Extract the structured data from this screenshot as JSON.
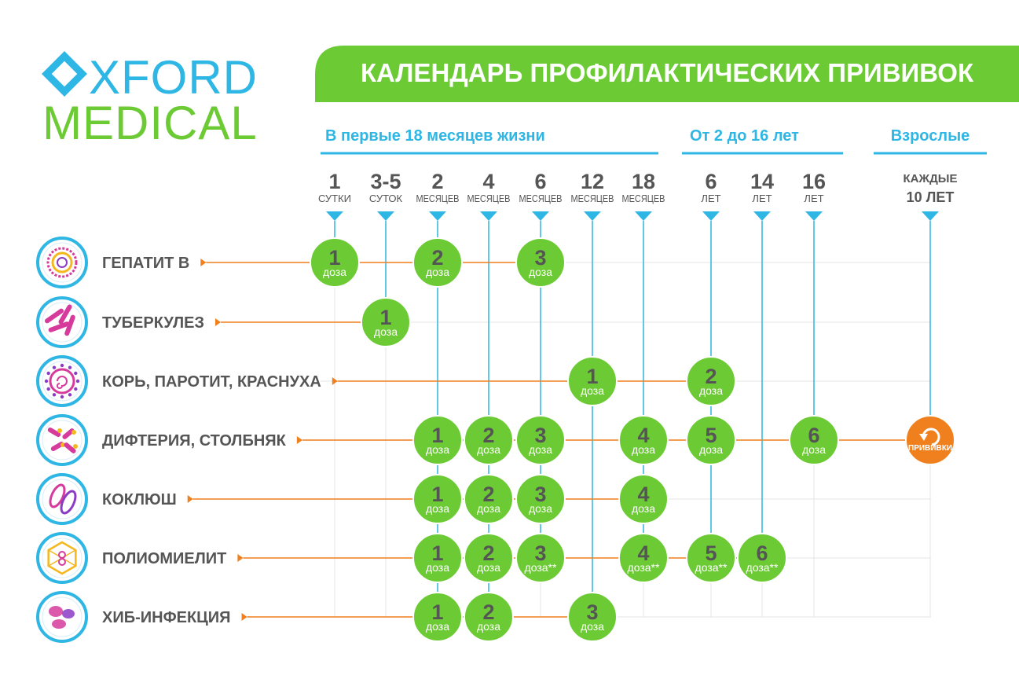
{
  "logo": {
    "line1": "XFORD",
    "line2": "MEDICAL"
  },
  "title": "КАЛЕНДАРЬ ПРОФИЛАКТИЧЕСКИХ ПРИВИВОК",
  "colors": {
    "green": "#6CCB34",
    "green_dark": "#5DB82B",
    "blue": "#2EB6E4",
    "orange": "#F07F1D",
    "text_dark": "#555555",
    "white": "#ffffff"
  },
  "sections": [
    {
      "id": "infants",
      "label": "В первые 18 месяцев жизни"
    },
    {
      "id": "children",
      "label": "От 2 до 16 лет"
    },
    {
      "id": "adults",
      "label": "Взрослые"
    }
  ],
  "age_columns": [
    {
      "id": "c1",
      "num": "1",
      "unit": "СУТКИ"
    },
    {
      "id": "c2",
      "num": "3-5",
      "unit": "СУТОК"
    },
    {
      "id": "c3",
      "num": "2",
      "unit": "МЕСЯЦЕВ"
    },
    {
      "id": "c4",
      "num": "4",
      "unit": "МЕСЯЦЕВ"
    },
    {
      "id": "c5",
      "num": "6",
      "unit": "МЕСЯЦЕВ"
    },
    {
      "id": "c6",
      "num": "12",
      "unit": "МЕСЯЦЕВ"
    },
    {
      "id": "c7",
      "num": "18",
      "unit": "МЕСЯЦЕВ"
    },
    {
      "id": "c8",
      "num": "6",
      "unit": "ЛЕТ"
    },
    {
      "id": "c9",
      "num": "14",
      "unit": "ЛЕТ"
    },
    {
      "id": "c10",
      "num": "16",
      "unit": "ЛЕТ"
    },
    {
      "id": "c11",
      "num": "10 ЛЕТ",
      "unit": "КАЖДЫЕ"
    }
  ],
  "vaccines": [
    {
      "id": "hepatitis-b",
      "label": "ГЕПАТИТ В",
      "icon": "hepatitis-virus-icon",
      "doses": [
        {
          "col": "c1",
          "num": "1",
          "text": "доза"
        },
        {
          "col": "c3",
          "num": "2",
          "text": "доза"
        },
        {
          "col": "c5",
          "num": "3",
          "text": "доза"
        }
      ]
    },
    {
      "id": "tuberculosis",
      "label": "ТУБЕРКУЛЕЗ",
      "icon": "tuberculosis-bacteria-icon",
      "doses": [
        {
          "col": "c2",
          "num": "1",
          "text": "доза"
        }
      ]
    },
    {
      "id": "mmr",
      "label": "КОРЬ, ПАРОТИТ, КРАСНУХА",
      "icon": "measles-virus-icon",
      "doses": [
        {
          "col": "c6",
          "num": "1",
          "text": "доза"
        },
        {
          "col": "c8",
          "num": "2",
          "text": "доза"
        }
      ]
    },
    {
      "id": "diphtheria-tetanus",
      "label": "ДИФТЕРИЯ, СТОЛБНЯК",
      "icon": "diphtheria-bacteria-icon",
      "doses": [
        {
          "col": "c3",
          "num": "1",
          "text": "доза"
        },
        {
          "col": "c4",
          "num": "2",
          "text": "доза"
        },
        {
          "col": "c5",
          "num": "3",
          "text": "доза"
        },
        {
          "col": "c7",
          "num": "4",
          "text": "доза"
        },
        {
          "col": "c8",
          "num": "5",
          "text": "доза"
        },
        {
          "col": "c10",
          "num": "6",
          "text": "доза"
        }
      ],
      "booster": {
        "col": "c11",
        "text": "ПРИВИВКИ"
      }
    },
    {
      "id": "pertussis",
      "label": "КОКЛЮШ",
      "icon": "pertussis-bacteria-icon",
      "doses": [
        {
          "col": "c3",
          "num": "1",
          "text": "доза"
        },
        {
          "col": "c4",
          "num": "2",
          "text": "доза"
        },
        {
          "col": "c5",
          "num": "3",
          "text": "доза"
        },
        {
          "col": "c7",
          "num": "4",
          "text": "доза"
        }
      ]
    },
    {
      "id": "polio",
      "label": "ПОЛИОМИЕЛИТ",
      "icon": "polio-virus-icon",
      "doses": [
        {
          "col": "c3",
          "num": "1",
          "text": "доза"
        },
        {
          "col": "c4",
          "num": "2",
          "text": "доза"
        },
        {
          "col": "c5",
          "num": "3",
          "text": "доза**"
        },
        {
          "col": "c7",
          "num": "4",
          "text": "доза**"
        },
        {
          "col": "c8",
          "num": "5",
          "text": "доза**"
        },
        {
          "col": "c9",
          "num": "6",
          "text": "доза**"
        }
      ]
    },
    {
      "id": "hib",
      "label": "ХИБ-ИНФЕКЦИЯ",
      "icon": "hib-bacteria-icon",
      "doses": [
        {
          "col": "c3",
          "num": "1",
          "text": "доза"
        },
        {
          "col": "c4",
          "num": "2",
          "text": "доза"
        },
        {
          "col": "c6",
          "num": "3",
          "text": "доза"
        }
      ]
    }
  ]
}
